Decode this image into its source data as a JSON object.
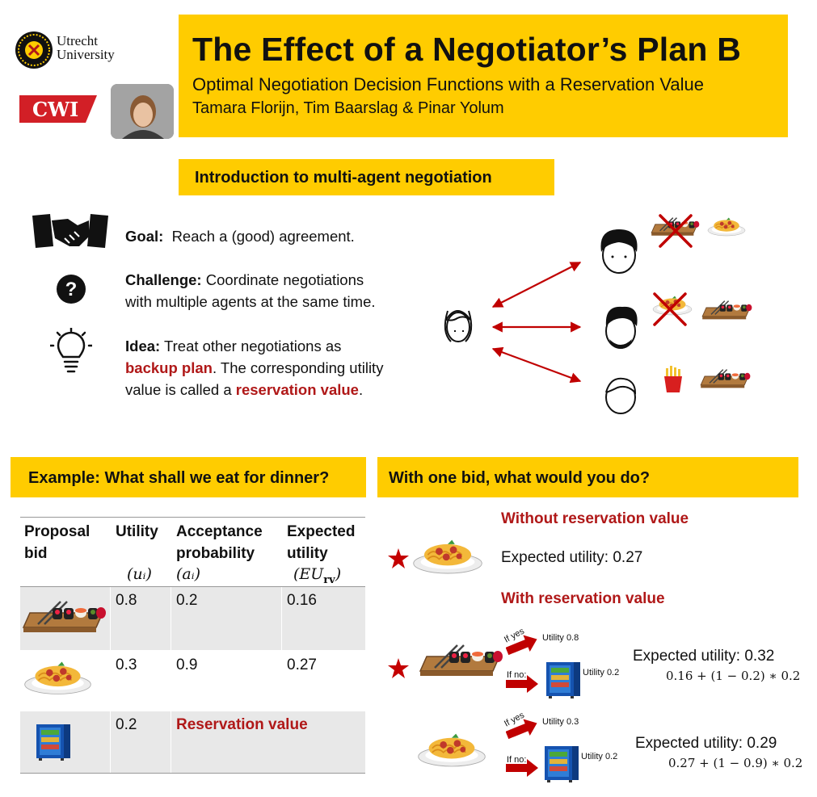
{
  "header": {
    "title": "The Effect of a Negotiator’s Plan B",
    "subtitle": "Optimal Negotiation Decision Functions with a Reservation Value",
    "authors": "Tamara Florijn, Tim Baarslag & Pinar Yolum"
  },
  "logos": {
    "utrecht_line1": "Utrecht",
    "utrecht_line2": "University",
    "cwi": "CWI"
  },
  "intro": {
    "heading": "Introduction to multi-agent negotiation",
    "goal_label": "Goal:",
    "goal_text": "Reach a (good) agreement.",
    "challenge_label": "Challenge:",
    "challenge_text_1": "Coordinate negotiations",
    "challenge_text_2": "with multiple agents at the same time.",
    "idea_label": "Idea:",
    "idea_text_1": "Treat other negotiations as",
    "idea_highlight_1": "backup plan",
    "idea_text_2": ". The corresponding utility",
    "idea_text_3": "value  is called a",
    "idea_highlight_2": "reservation value",
    "idea_text_4": "."
  },
  "example": {
    "heading": "Example: What shall we eat for dinner?",
    "columns": [
      {
        "line1": "Proposal",
        "line2": "bid",
        "symbol": ""
      },
      {
        "line1": "Utility",
        "line2": "",
        "symbol": "(uᵢ)"
      },
      {
        "line1": "Acceptance",
        "line2": "probability",
        "symbol": "(aᵢ)"
      },
      {
        "line1": "Expected",
        "line2": "utility",
        "symbol": "(EU"
      }
    ],
    "eu_sub": "rv",
    "eu_close": ")",
    "rows": [
      {
        "item": "sushi",
        "utility": "0.8",
        "acceptance": "0.2",
        "expected": "0.16"
      },
      {
        "item": "spaghetti",
        "utility": "0.3",
        "acceptance": "0.9",
        "expected": "0.27"
      },
      {
        "item": "fridge",
        "utility": "0.2",
        "acceptance": "Reservation value",
        "expected": ""
      }
    ]
  },
  "onebid": {
    "heading": "With one bid, what would you do?",
    "without_rv_label": "Without reservation value",
    "without_rv_eu": "Expected utility: 0.27",
    "with_rv_label": "With reservation value",
    "option1": {
      "if_yes": "If yes",
      "yes_utility": "Utility 0.8",
      "if_no": "If no:",
      "no_utility": "Utility 0.2",
      "eu": "Expected utility: 0.32",
      "formula": "0.16 + (1 − 0.2) ∗ 0.2"
    },
    "option2": {
      "if_yes": "If yes",
      "yes_utility": "Utility 0.3",
      "if_no": "If no:",
      "no_utility": "Utility 0.2",
      "eu": "Expected utility: 0.29",
      "formula": "0.27 + (1 − 0.9) ∗ 0.2"
    }
  },
  "colors": {
    "accent_yellow": "#ffcc00",
    "highlight_red": "#b01818",
    "arrow_red": "#c00000",
    "cwi_red": "#d21f26"
  },
  "icons": [
    "handshake-icon",
    "question-icon",
    "lightbulb-icon",
    "woman-face-icon",
    "man-face-icon",
    "sushi-icon",
    "spaghetti-icon",
    "fries-icon",
    "fridge-icon",
    "star-icon",
    "cross-icon"
  ]
}
